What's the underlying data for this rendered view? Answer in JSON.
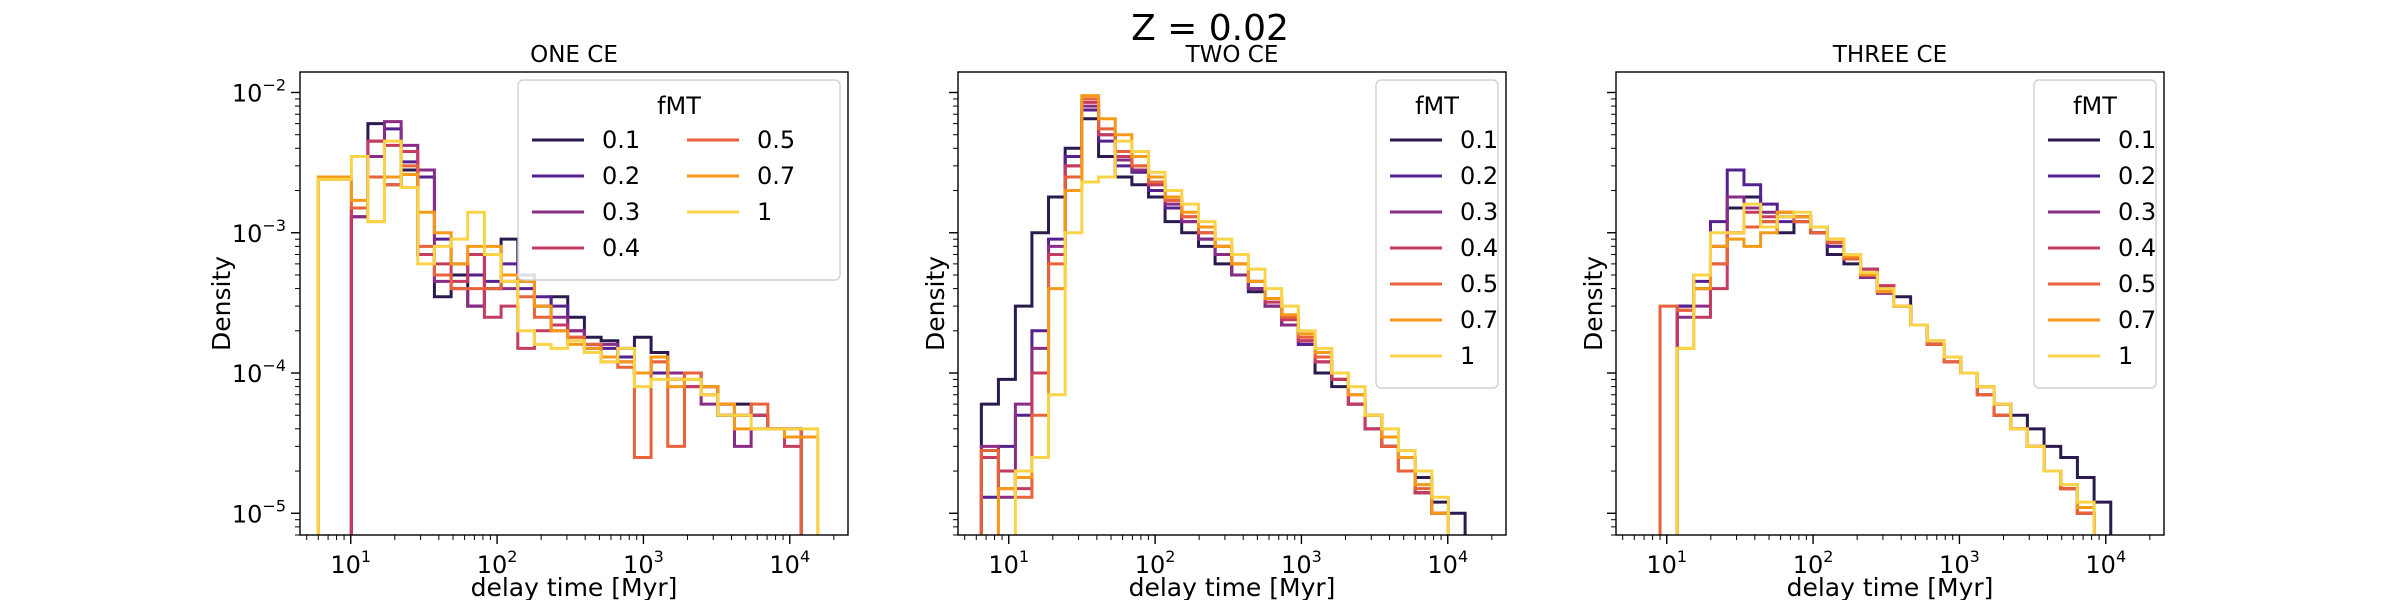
{
  "figure": {
    "title": "Z = 0.02"
  },
  "chart_data": [
    {
      "type": "histogram-step",
      "title": "ONE CE",
      "xlabel": "delay time [Myr]",
      "ylabel": "Density",
      "xscale": "log",
      "yscale": "log",
      "xlim": [
        4.5,
        25000
      ],
      "ylim": [
        7e-06,
        0.014
      ],
      "xticks": [
        {
          "base": "10",
          "exp": "1",
          "value": 10
        },
        {
          "base": "10",
          "exp": "2",
          "value": 100
        },
        {
          "base": "10",
          "exp": "3",
          "value": 1000
        },
        {
          "base": "10",
          "exp": "4",
          "value": 10000
        }
      ],
      "yticks": [
        {
          "base": "10",
          "exp": "−5",
          "value": 1e-05
        },
        {
          "base": "10",
          "exp": "−4",
          "value": 0.0001
        },
        {
          "base": "10",
          "exp": "−3",
          "value": 0.001
        },
        {
          "base": "10",
          "exp": "−2",
          "value": 0.01
        }
      ],
      "show_ytick_labels": true,
      "legend": {
        "title": "fMT",
        "placement": "upper right",
        "columns": 2
      },
      "bin_edges": [
        6,
        7.8,
        10.1,
        13.1,
        17,
        22.1,
        28.7,
        37.3,
        48.5,
        63,
        81.9,
        106.5,
        138.5,
        180,
        234,
        304,
        395,
        514,
        668,
        868,
        1128,
        1467,
        1907,
        2479,
        3223,
        4190,
        5447,
        7081,
        9205,
        11966,
        15556
      ],
      "series": [
        {
          "name": "0.1",
          "color": "#2a1a4f",
          "values": [
            null,
            null,
            0.0015,
            0.006,
            0.0022,
            0.0028,
            0.0007,
            0.00035,
            0.0005,
            0.0003,
            0.0004,
            0.0009,
            0.0005,
            0.0003,
            0.00035,
            0.00025,
            0.00018,
            0.00017,
            0.00015,
            0.00018,
            0.00014,
            0.0001,
            0.0001,
            8e-05,
            5e-05,
            6e-05,
            5e-05,
            4e-05,
            4e-05,
            null
          ]
        },
        {
          "name": "0.2",
          "color": "#55208f",
          "values": [
            null,
            null,
            0.0013,
            0.0045,
            0.0055,
            0.0032,
            0.0025,
            0.0009,
            0.0006,
            0.0005,
            0.00045,
            0.0006,
            0.0004,
            0.00035,
            0.0003,
            0.0002,
            0.00016,
            0.00015,
            0.00013,
            0.0001,
            0.0001,
            9e-05,
            0.0001,
            8e-05,
            6e-05,
            5e-05,
            5e-05,
            4e-05,
            4e-05,
            null
          ]
        },
        {
          "name": "0.3",
          "color": "#8a2c85",
          "values": [
            null,
            null,
            0.0013,
            0.0035,
            0.0062,
            0.0042,
            0.0028,
            0.00045,
            0.0004,
            0.0003,
            0.0007,
            0.0004,
            0.00045,
            0.0003,
            0.00025,
            0.0002,
            0.00015,
            0.00016,
            0.00012,
            0.0001,
            0.00013,
            0.0001,
            8e-05,
            6e-05,
            5e-05,
            3e-05,
            4e-05,
            4e-05,
            4e-05,
            null
          ]
        },
        {
          "name": "0.4",
          "color": "#c43c5f",
          "values": [
            null,
            null,
            0.0015,
            0.0045,
            0.0042,
            0.0038,
            0.0007,
            0.0006,
            0.00045,
            0.0007,
            0.00025,
            0.0003,
            0.00015,
            0.0002,
            0.00022,
            0.00018,
            0.00014,
            0.00013,
            0.00012,
            0.0001,
            0.00012,
            9e-05,
            8e-05,
            7e-05,
            6e-05,
            5e-05,
            5e-05,
            4e-05,
            3e-05,
            null
          ]
        },
        {
          "name": "0.5",
          "color": "#e8623a",
          "values": [
            0.0024,
            0.0024,
            0.0015,
            0.0025,
            0.0022,
            0.003,
            0.0008,
            0.0005,
            0.0004,
            0.0004,
            0.0004,
            0.00045,
            0.00035,
            0.00025,
            0.0002,
            0.00018,
            0.00016,
            0.00012,
            0.00011,
            2.5e-05,
            0.00012,
            3e-05,
            0.0001,
            8e-05,
            6e-05,
            5e-05,
            6e-05,
            4e-05,
            4e-05,
            null
          ]
        },
        {
          "name": "0.7",
          "color": "#f59a18",
          "values": [
            0.0025,
            0.0025,
            0.0017,
            0.0012,
            0.0025,
            0.0026,
            0.0014,
            0.001,
            0.0006,
            0.0008,
            0.0008,
            0.0005,
            0.00045,
            0.0003,
            0.0002,
            0.00016,
            0.00015,
            0.00013,
            0.00012,
            0.0001,
            0.00013,
            8e-05,
            9e-05,
            8e-05,
            6e-05,
            4e-05,
            4e-05,
            4e-05,
            3.5e-05,
            3.5e-05
          ]
        },
        {
          "name": "1",
          "color": "#f9d449",
          "values": [
            0.0024,
            0.0024,
            0.0035,
            0.0012,
            0.0045,
            0.0021,
            0.0006,
            0.0008,
            0.0009,
            0.0014,
            0.0007,
            0.00045,
            0.0002,
            0.00016,
            0.00015,
            0.00017,
            0.00014,
            0.00012,
            0.00015,
            8e-05,
            9e-05,
            9e-05,
            9e-05,
            7e-05,
            5e-05,
            5e-05,
            4e-05,
            4e-05,
            4e-05,
            4e-05
          ]
        }
      ]
    },
    {
      "type": "histogram-step",
      "title": "TWO CE",
      "xlabel": "delay time [Myr]",
      "ylabel": "Density",
      "xscale": "log",
      "yscale": "log",
      "xlim": [
        4.5,
        25000
      ],
      "ylim": [
        7e-06,
        0.014
      ],
      "xticks": [
        {
          "base": "10",
          "exp": "1",
          "value": 10
        },
        {
          "base": "10",
          "exp": "2",
          "value": 100
        },
        {
          "base": "10",
          "exp": "3",
          "value": 1000
        },
        {
          "base": "10",
          "exp": "4",
          "value": 10000
        }
      ],
      "yticks": [
        {
          "base": "10",
          "exp": "−5",
          "value": 1e-05
        },
        {
          "base": "10",
          "exp": "−4",
          "value": 0.0001
        },
        {
          "base": "10",
          "exp": "−3",
          "value": 0.001
        },
        {
          "base": "10",
          "exp": "−2",
          "value": 0.01
        }
      ],
      "show_ytick_labels": false,
      "legend": {
        "title": "fMT",
        "placement": "upper right",
        "columns": 1
      },
      "bin_edges": [
        6.5,
        8.5,
        11.1,
        14.4,
        18.7,
        24.3,
        31.6,
        41.1,
        53.4,
        69.4,
        90.2,
        117,
        152,
        198,
        257,
        334,
        434,
        564,
        733,
        953,
        1239,
        1611,
        2094,
        2722,
        3539,
        4601,
        5981,
        7775,
        10107,
        13139,
        17081
      ],
      "series": [
        {
          "name": "0.1",
          "color": "#2a1a4f",
          "values": [
            6e-05,
            9e-05,
            0.0003,
            0.001,
            0.0018,
            0.004,
            0.0065,
            0.0035,
            0.0025,
            0.0022,
            0.0018,
            0.0012,
            0.001,
            0.0008,
            0.0006,
            0.0005,
            0.00038,
            0.0003,
            0.00022,
            0.00016,
            0.0001,
            8e-05,
            6e-05,
            5e-05,
            3e-05,
            2.5e-05,
            1.8e-05,
            1.2e-05,
            1e-05,
            null
          ]
        },
        {
          "name": "0.2",
          "color": "#55208f",
          "values": [
            1.3e-05,
            3e-05,
            5e-05,
            0.0002,
            0.0009,
            0.0035,
            0.0075,
            0.0045,
            0.003,
            0.0027,
            0.002,
            0.0015,
            0.0012,
            0.0009,
            0.0007,
            0.0005,
            0.0004,
            0.0003,
            0.00022,
            0.00016,
            0.00012,
            9e-05,
            6e-05,
            4e-05,
            3e-05,
            2e-05,
            1.4e-05,
            1e-05,
            null,
            null
          ]
        },
        {
          "name": "0.3",
          "color": "#8a2c85",
          "values": [
            3e-05,
            1.3e-05,
            6e-05,
            0.00015,
            0.0008,
            0.003,
            0.008,
            0.005,
            0.0033,
            0.0028,
            0.0022,
            0.0016,
            0.0012,
            0.0009,
            0.0007,
            0.0005,
            0.0004,
            0.0003,
            0.00022,
            0.00017,
            0.00012,
            9e-05,
            6e-05,
            4e-05,
            3e-05,
            2e-05,
            1.4e-05,
            1e-05,
            null,
            null
          ]
        },
        {
          "name": "0.4",
          "color": "#c43c5f",
          "values": [
            2.5e-05,
            2e-05,
            1.5e-05,
            0.0001,
            0.0007,
            0.003,
            0.0085,
            0.005,
            0.0035,
            0.003,
            0.0022,
            0.0017,
            0.0013,
            0.001,
            0.0008,
            0.0006,
            0.00045,
            0.00032,
            0.00024,
            0.00017,
            0.00012,
            9e-05,
            6e-05,
            4e-05,
            3e-05,
            2e-05,
            1.4e-05,
            1e-05,
            null,
            null
          ]
        },
        {
          "name": "0.5",
          "color": "#e8623a",
          "values": [
            2.8e-05,
            1.5e-05,
            1.3e-05,
            5e-05,
            0.0006,
            0.0025,
            0.009,
            0.0055,
            0.0038,
            0.003,
            0.0023,
            0.0017,
            0.0013,
            0.001,
            0.0008,
            0.0006,
            0.00045,
            0.00034,
            0.00025,
            0.00018,
            0.00013,
            0.0001,
            7e-05,
            5e-05,
            3e-05,
            2e-05,
            1.5e-05,
            1e-05,
            null,
            null
          ]
        },
        {
          "name": "0.7",
          "color": "#f59a18",
          "values": [
            null,
            1.5e-05,
            1.8e-05,
            2.5e-05,
            0.0004,
            0.002,
            0.0095,
            0.0065,
            0.005,
            0.0035,
            0.0025,
            0.0018,
            0.0014,
            0.0011,
            0.0008,
            0.0006,
            0.00045,
            0.00034,
            0.00026,
            0.00019,
            0.00014,
            0.0001,
            7e-05,
            5e-05,
            3.5e-05,
            2.5e-05,
            1.6e-05,
            1e-05,
            null,
            null
          ]
        },
        {
          "name": "1",
          "color": "#f9d449",
          "values": [
            null,
            null,
            2e-05,
            2.5e-05,
            7e-05,
            0.001,
            0.0023,
            0.0025,
            0.0045,
            0.0038,
            0.0027,
            0.002,
            0.0016,
            0.0012,
            0.0009,
            0.0007,
            0.00055,
            0.0004,
            0.0003,
            0.0002,
            0.00015,
            0.0001,
            8e-05,
            5e-05,
            4e-05,
            2.8e-05,
            2e-05,
            1.3e-05,
            null,
            null
          ]
        }
      ]
    },
    {
      "type": "histogram-step",
      "title": "THREE CE",
      "xlabel": "delay time [Myr]",
      "ylabel": "Density",
      "xscale": "log",
      "yscale": "log",
      "xlim": [
        4.5,
        25000
      ],
      "ylim": [
        7e-06,
        0.014
      ],
      "xticks": [
        {
          "base": "10",
          "exp": "1",
          "value": 10
        },
        {
          "base": "10",
          "exp": "2",
          "value": 100
        },
        {
          "base": "10",
          "exp": "3",
          "value": 1000
        },
        {
          "base": "10",
          "exp": "4",
          "value": 10000
        }
      ],
      "yticks": [
        {
          "base": "10",
          "exp": "−5",
          "value": 1e-05
        },
        {
          "base": "10",
          "exp": "−4",
          "value": 0.0001
        },
        {
          "base": "10",
          "exp": "−3",
          "value": 0.001
        },
        {
          "base": "10",
          "exp": "−2",
          "value": 0.01
        }
      ],
      "show_ytick_labels": false,
      "legend": {
        "title": "fMT",
        "placement": "upper right",
        "columns": 1
      },
      "bin_edges": [
        9,
        11.8,
        15.3,
        19.9,
        25.9,
        33.7,
        43.8,
        56.9,
        74,
        96.2,
        125,
        162.5,
        211,
        275,
        357,
        464,
        604,
        785,
        1020,
        1326,
        1724,
        2241,
        2914,
        3788,
        4924,
        6401,
        8322,
        10818,
        14063,
        18282
      ],
      "series": [
        {
          "name": "0.1",
          "color": "#2a1a4f",
          "values": [
            null,
            0.0003,
            0.0004,
            0.0008,
            0.0015,
            0.0018,
            0.0012,
            0.001,
            0.0013,
            0.0011,
            0.0007,
            0.0006,
            0.00055,
            0.0004,
            0.00035,
            0.00022,
            0.00016,
            0.00013,
            0.0001,
            8e-05,
            6e-05,
            5e-05,
            4e-05,
            3e-05,
            2.5e-05,
            1.8e-05,
            1.2e-05,
            null,
            null
          ]
        },
        {
          "name": "0.2",
          "color": "#55208f",
          "values": [
            null,
            0.0003,
            0.00045,
            0.0012,
            0.0028,
            0.0022,
            0.0016,
            0.0012,
            0.0012,
            0.001,
            0.0008,
            0.00065,
            0.0005,
            0.00038,
            0.0003,
            0.00022,
            0.00016,
            0.00012,
            0.0001,
            8e-05,
            6e-05,
            4e-05,
            3e-05,
            2e-05,
            1.5e-05,
            1e-05,
            null,
            null,
            null
          ]
        },
        {
          "name": "0.3",
          "color": "#8a2c85",
          "values": [
            null,
            0.00025,
            0.0003,
            0.0006,
            0.0018,
            0.0015,
            0.0014,
            0.0013,
            0.0012,
            0.001,
            0.00085,
            0.00065,
            0.00048,
            0.00037,
            0.0003,
            0.00022,
            0.00016,
            0.00012,
            0.0001,
            7e-05,
            5e-05,
            4e-05,
            3e-05,
            2e-05,
            1.5e-05,
            1e-05,
            null,
            null,
            null
          ]
        },
        {
          "name": "0.4",
          "color": "#c43c5f",
          "values": [
            null,
            0.00028,
            0.00025,
            0.0004,
            0.001,
            0.0014,
            0.0013,
            0.0014,
            0.0013,
            0.0011,
            0.0009,
            0.0007,
            0.00055,
            0.00042,
            0.0003,
            0.00022,
            0.00016,
            0.00012,
            0.0001,
            7e-05,
            5e-05,
            4e-05,
            3e-05,
            2e-05,
            1.5e-05,
            1e-05,
            null,
            null,
            null
          ]
        },
        {
          "name": "0.5",
          "color": "#e8623a",
          "values": [
            0.0003,
            0.00028,
            0.0005,
            0.0006,
            0.001,
            0.0011,
            0.0012,
            0.0014,
            0.0012,
            0.001,
            0.00085,
            0.00065,
            0.0005,
            0.00038,
            0.0003,
            0.00022,
            0.00016,
            0.00012,
            0.0001,
            7e-05,
            5e-05,
            4e-05,
            3e-05,
            2e-05,
            1.5e-05,
            1e-05,
            null,
            null,
            null
          ]
        },
        {
          "name": "0.7",
          "color": "#f59a18",
          "values": [
            null,
            0.00015,
            0.0004,
            0.0008,
            0.0009,
            0.0008,
            0.001,
            0.0014,
            0.0013,
            0.0011,
            0.0009,
            0.00068,
            0.0005,
            0.00038,
            0.0003,
            0.00022,
            0.00017,
            0.00013,
            0.0001,
            8e-05,
            6e-05,
            4e-05,
            3e-05,
            2e-05,
            1.6e-05,
            1.1e-05,
            null,
            null,
            null
          ]
        },
        {
          "name": "1",
          "color": "#f9d449",
          "values": [
            null,
            0.00015,
            0.0005,
            0.001,
            0.001,
            0.0016,
            0.0011,
            0.0013,
            0.0014,
            0.0011,
            0.0009,
            0.0007,
            0.00052,
            0.0004,
            0.0003,
            0.00022,
            0.00017,
            0.00013,
            0.0001,
            8e-05,
            6e-05,
            4e-05,
            3e-05,
            2e-05,
            1.6e-05,
            1.2e-05,
            null,
            null,
            null
          ]
        }
      ]
    }
  ]
}
